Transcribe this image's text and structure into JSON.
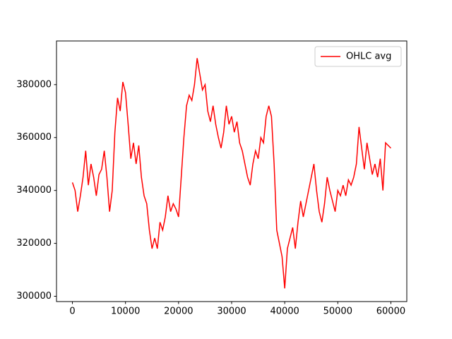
{
  "chart_data": {
    "type": "line",
    "x": [
      0,
      500,
      1000,
      1500,
      2000,
      2500,
      3000,
      3500,
      4000,
      4500,
      5000,
      5500,
      6000,
      6500,
      7000,
      7500,
      8000,
      8500,
      9000,
      9500,
      10000,
      10500,
      11000,
      11500,
      12000,
      12500,
      13000,
      13500,
      14000,
      14500,
      15000,
      15500,
      16000,
      16500,
      17000,
      17500,
      18000,
      18500,
      19000,
      19500,
      20000,
      20500,
      21000,
      21500,
      22000,
      22500,
      23000,
      23500,
      24000,
      24500,
      25000,
      25500,
      26000,
      26500,
      27000,
      27500,
      28000,
      28500,
      29000,
      29500,
      30000,
      30500,
      31000,
      31500,
      32000,
      32500,
      33000,
      33500,
      34000,
      34500,
      35000,
      35500,
      36000,
      36500,
      37000,
      37500,
      38000,
      38500,
      39000,
      39500,
      40000,
      40500,
      41000,
      41500,
      42000,
      42500,
      43000,
      43500,
      44000,
      44500,
      45000,
      45500,
      46000,
      46500,
      47000,
      47500,
      48000,
      48500,
      49000,
      49500,
      50000,
      50500,
      51000,
      51500,
      52000,
      52500,
      53000,
      53500,
      54000,
      54500,
      55000,
      55500,
      56000,
      56500,
      57000,
      57500,
      58000,
      58500,
      59000,
      59500,
      60000
    ],
    "series": [
      {
        "name": "OHLC avg",
        "color": "#ff0000",
        "values": [
          343000,
          340000,
          332000,
          338000,
          345000,
          355000,
          342000,
          350000,
          345000,
          338000,
          346000,
          348000,
          355000,
          345000,
          332000,
          340000,
          362000,
          375000,
          370000,
          381000,
          377000,
          365000,
          352000,
          358000,
          350000,
          357000,
          345000,
          338000,
          335000,
          325000,
          318000,
          322000,
          318000,
          328000,
          325000,
          330000,
          338000,
          332000,
          335000,
          333000,
          330000,
          345000,
          360000,
          372000,
          376000,
          374000,
          380000,
          390000,
          384000,
          378000,
          380000,
          370000,
          366000,
          372000,
          365000,
          360000,
          356000,
          362000,
          372000,
          365000,
          368000,
          362000,
          366000,
          358000,
          355000,
          350000,
          345000,
          342000,
          350000,
          355000,
          352000,
          360000,
          358000,
          368000,
          372000,
          368000,
          350000,
          325000,
          320000,
          315000,
          303000,
          318000,
          322000,
          326000,
          318000,
          328000,
          336000,
          330000,
          335000,
          340000,
          345000,
          350000,
          340000,
          332000,
          328000,
          335000,
          345000,
          340000,
          336000,
          332000,
          340000,
          338000,
          342000,
          338000,
          344000,
          342000,
          345000,
          350000,
          364000,
          356000,
          348000,
          358000,
          352000,
          346000,
          350000,
          345000,
          352000,
          340000,
          358000,
          357000,
          356000
        ]
      }
    ],
    "xlim": [
      -3000,
      63000
    ],
    "ylim": [
      298000,
      396500
    ],
    "xticks": [
      0,
      10000,
      20000,
      30000,
      40000,
      50000,
      60000
    ],
    "yticks": [
      300000,
      320000,
      340000,
      360000,
      380000
    ],
    "legend": "upper right"
  }
}
